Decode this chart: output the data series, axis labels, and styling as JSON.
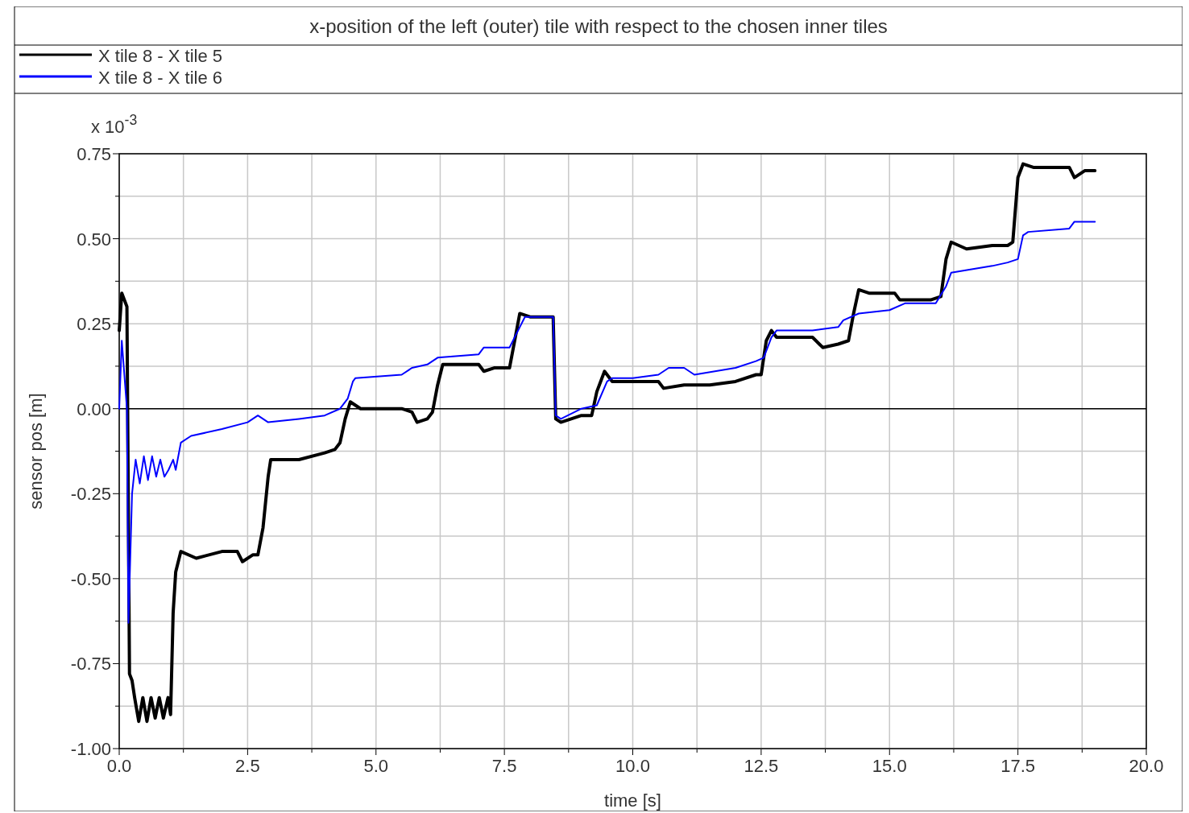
{
  "chart_data": {
    "type": "line",
    "title": "x-position of the left (outer) tile with respect to the chosen inner tiles",
    "xlabel": "time [s]",
    "ylabel": "sensor pos [m]",
    "annotations": [
      "x 10$^{-3}$"
    ],
    "legend": "top left",
    "grid": true,
    "line_style": "solid",
    "marker": "none",
    "xlim": [
      0,
      20
    ],
    "ylim": [
      -1,
      0.75
    ],
    "xticks": [
      {
        "value": 0,
        "label": "0.0"
      },
      {
        "value": 1.25,
        "label": null
      },
      {
        "value": 2.5,
        "label": "2.5"
      },
      {
        "value": 3.75,
        "label": null
      },
      {
        "value": 5,
        "label": "5.0"
      },
      {
        "value": 6.25,
        "label": null
      },
      {
        "value": 7.5,
        "label": "7.5"
      },
      {
        "value": 8.75,
        "label": null
      },
      {
        "value": 10,
        "label": "10.0"
      },
      {
        "value": 11.25,
        "label": null
      },
      {
        "value": 12.5,
        "label": "12.5"
      },
      {
        "value": 13.75,
        "label": null
      },
      {
        "value": 15,
        "label": "15.0"
      },
      {
        "value": 16.25,
        "label": null
      },
      {
        "value": 17.5,
        "label": "17.5"
      },
      {
        "value": 18.75,
        "label": null
      },
      {
        "value": 20,
        "label": "20.0"
      }
    ],
    "yticks": [
      {
        "value": -1,
        "label": "-1.00"
      },
      {
        "value": -0.875,
        "label": null
      },
      {
        "value": -0.75,
        "label": "-0.75"
      },
      {
        "value": -0.625,
        "label": null
      },
      {
        "value": -0.5,
        "label": "-0.50"
      },
      {
        "value": -0.375,
        "label": null
      },
      {
        "value": -0.25,
        "label": "-0.25"
      },
      {
        "value": -0.125,
        "label": null
      },
      {
        "value": 0,
        "label": "0.00"
      },
      {
        "value": 0.125,
        "label": null
      },
      {
        "value": 0.25,
        "label": "0.25"
      },
      {
        "value": 0.375,
        "label": null
      },
      {
        "value": 0.5,
        "label": "0.50"
      },
      {
        "value": 0.625,
        "label": null
      },
      {
        "value": 0.75,
        "label": "0.75"
      }
    ],
    "ref_lines": [
      {
        "axis": "y",
        "value": 0,
        "label": null,
        "color": "#000000"
      }
    ],
    "series": [
      {
        "name": "X tile 8 - X tile 5",
        "color": "#000000",
        "x": [
          0,
          0.05,
          0.15,
          0.2,
          0.25,
          0.3,
          0.38,
          0.46,
          0.54,
          0.62,
          0.7,
          0.78,
          0.86,
          0.95,
          1.0,
          1.05,
          1.1,
          1.2,
          1.5,
          2.0,
          2.3,
          2.4,
          2.6,
          2.7,
          2.8,
          2.9,
          2.95,
          3.5,
          4.0,
          4.2,
          4.3,
          4.4,
          4.5,
          4.7,
          5.5,
          5.7,
          5.8,
          6.0,
          6.1,
          6.2,
          6.3,
          6.5,
          7.0,
          7.1,
          7.3,
          7.6,
          7.7,
          7.8,
          8.0,
          8.45,
          8.5,
          8.6,
          9.0,
          9.2,
          9.3,
          9.45,
          9.6,
          10.0,
          10.5,
          10.6,
          11.0,
          11.5,
          12.0,
          12.4,
          12.5,
          12.6,
          12.7,
          12.8,
          13.5,
          13.7,
          14.0,
          14.2,
          14.3,
          14.4,
          14.6,
          15.1,
          15.2,
          15.8,
          16.0,
          16.1,
          16.2,
          16.5,
          17.0,
          17.3,
          17.4,
          17.5,
          17.6,
          17.8,
          18.5,
          18.6,
          18.8,
          19.0
        ],
        "values": [
          0.23,
          0.34,
          0.3,
          -0.78,
          -0.8,
          -0.85,
          -0.92,
          -0.85,
          -0.92,
          -0.85,
          -0.91,
          -0.85,
          -0.91,
          -0.85,
          -0.9,
          -0.6,
          -0.48,
          -0.42,
          -0.44,
          -0.42,
          -0.42,
          -0.45,
          -0.43,
          -0.43,
          -0.35,
          -0.2,
          -0.15,
          -0.15,
          -0.13,
          -0.12,
          -0.1,
          -0.03,
          0.02,
          0,
          0,
          -0.01,
          -0.04,
          -0.03,
          -0.01,
          0.07,
          0.13,
          0.13,
          0.13,
          0.11,
          0.12,
          0.12,
          0.2,
          0.28,
          0.27,
          0.27,
          -0.03,
          -0.04,
          -0.02,
          -0.02,
          0.05,
          0.11,
          0.08,
          0.08,
          0.08,
          0.06,
          0.07,
          0.07,
          0.08,
          0.1,
          0.1,
          0.2,
          0.23,
          0.21,
          0.21,
          0.18,
          0.19,
          0.2,
          0.28,
          0.35,
          0.34,
          0.34,
          0.32,
          0.32,
          0.33,
          0.44,
          0.49,
          0.47,
          0.48,
          0.48,
          0.49,
          0.68,
          0.72,
          0.71,
          0.71,
          0.68,
          0.7,
          0.7
        ]
      },
      {
        "name": "X tile 8 - X tile 6",
        "color": "#0000ff",
        "x": [
          0,
          0.05,
          0.1,
          0.15,
          0.18,
          0.25,
          0.32,
          0.4,
          0.48,
          0.56,
          0.64,
          0.72,
          0.8,
          0.88,
          0.96,
          1.05,
          1.1,
          1.2,
          1.4,
          2.0,
          2.5,
          2.7,
          2.9,
          3.5,
          4.0,
          4.3,
          4.45,
          4.55,
          4.6,
          5.5,
          5.7,
          6.0,
          6.2,
          7.0,
          7.1,
          7.6,
          7.8,
          7.9,
          8.45,
          8.5,
          8.6,
          9.0,
          9.3,
          9.5,
          9.6,
          10.0,
          10.5,
          10.7,
          11.0,
          11.2,
          12.0,
          12.4,
          12.55,
          12.7,
          12.8,
          13.5,
          14.0,
          14.1,
          14.4,
          15.0,
          15.3,
          15.9,
          16.1,
          16.2,
          17.0,
          17.3,
          17.5,
          17.6,
          17.7,
          18.5,
          18.6,
          19.0
        ],
        "values": [
          0,
          0.2,
          0.1,
          0,
          -0.63,
          -0.25,
          -0.15,
          -0.22,
          -0.14,
          -0.21,
          -0.14,
          -0.2,
          -0.15,
          -0.2,
          -0.18,
          -0.15,
          -0.18,
          -0.1,
          -0.08,
          -0.06,
          -0.04,
          -0.02,
          -0.04,
          -0.03,
          -0.02,
          0,
          0.03,
          0.08,
          0.09,
          0.1,
          0.12,
          0.13,
          0.15,
          0.16,
          0.18,
          0.18,
          0.24,
          0.27,
          0.27,
          -0.02,
          -0.03,
          0,
          0.01,
          0.08,
          0.09,
          0.09,
          0.1,
          0.12,
          0.12,
          0.1,
          0.12,
          0.14,
          0.15,
          0.21,
          0.23,
          0.23,
          0.24,
          0.26,
          0.28,
          0.29,
          0.31,
          0.31,
          0.36,
          0.4,
          0.42,
          0.43,
          0.44,
          0.51,
          0.52,
          0.53,
          0.55,
          0.55
        ]
      }
    ]
  }
}
